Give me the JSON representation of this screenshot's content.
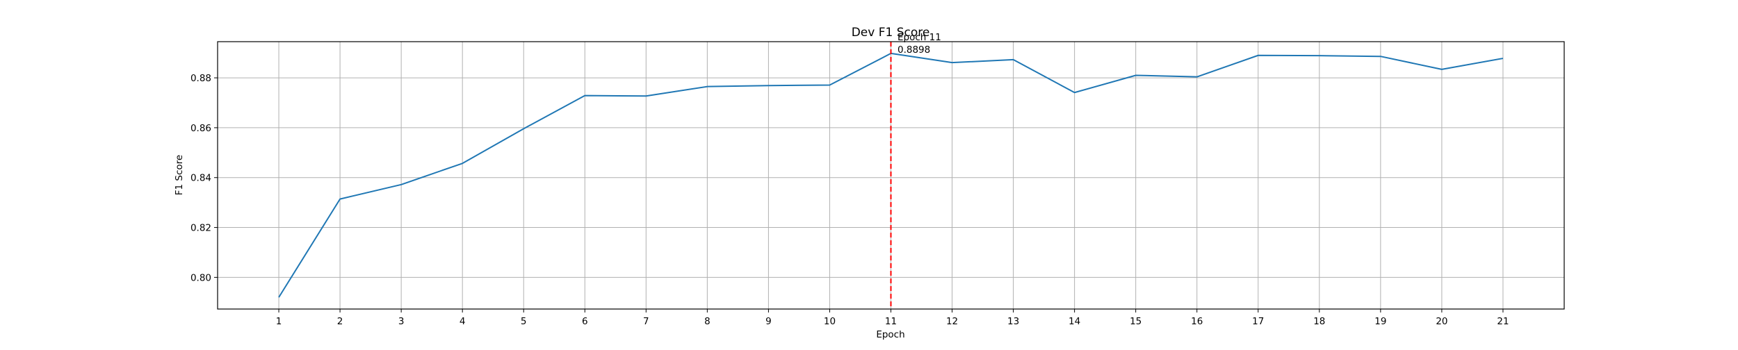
{
  "chart_data": {
    "type": "line",
    "title": "Dev F1 Score",
    "xlabel": "Epoch",
    "ylabel": "F1 Score",
    "x": [
      1,
      2,
      3,
      4,
      5,
      6,
      7,
      8,
      9,
      10,
      11,
      12,
      13,
      14,
      15,
      16,
      17,
      18,
      19,
      20,
      21
    ],
    "series": [
      {
        "values": [
          0.792,
          0.8314,
          0.8372,
          0.8457,
          0.8596,
          0.8729,
          0.8727,
          0.8765,
          0.8769,
          0.8771,
          0.8898,
          0.8861,
          0.8873,
          0.8741,
          0.881,
          0.8804,
          0.889,
          0.8889,
          0.8886,
          0.8834,
          0.8878
        ],
        "color": "#1f77b4"
      }
    ],
    "xlim": [
      0,
      22
    ],
    "ylim": [
      0.7873,
      0.8945
    ],
    "xticks": [
      "1",
      "2",
      "3",
      "4",
      "5",
      "6",
      "7",
      "8",
      "9",
      "10",
      "11",
      "12",
      "13",
      "14",
      "15",
      "16",
      "17",
      "18",
      "19",
      "20",
      "21"
    ],
    "yticks": [
      0.8,
      0.82,
      0.84,
      0.86,
      0.88
    ],
    "ytick_labels": [
      "0.80",
      "0.82",
      "0.84",
      "0.86",
      "0.88"
    ],
    "grid": true,
    "best": {
      "x": 11,
      "color": "#ff0000",
      "label_line1": "Epoch 11",
      "label_line2": "0.8898"
    }
  }
}
